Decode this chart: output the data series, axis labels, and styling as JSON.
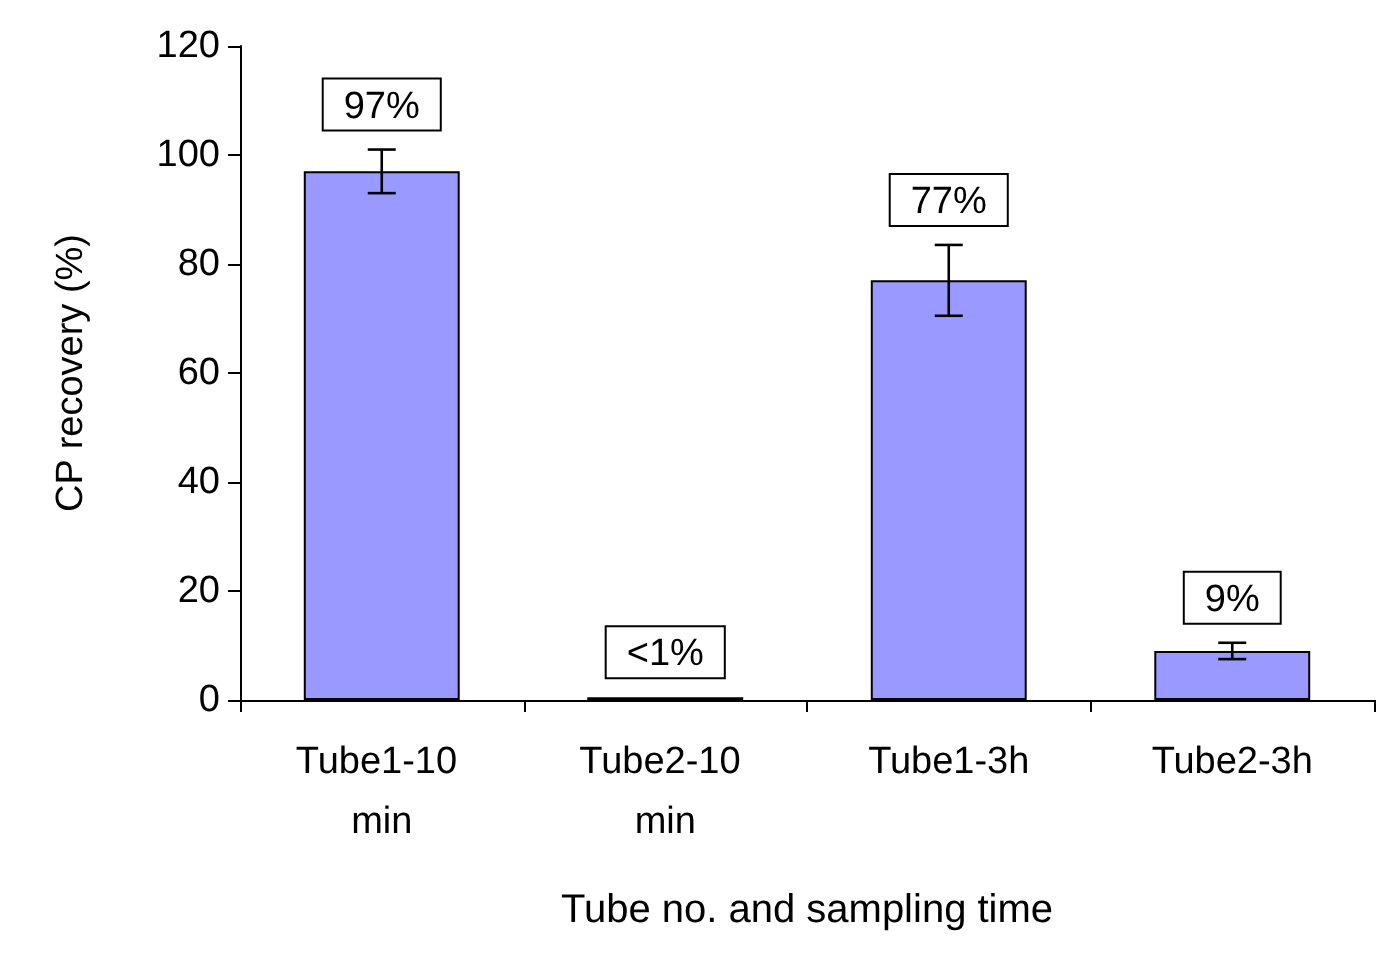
{
  "chart_data": {
    "type": "bar",
    "xlabel": "Tube no. and sampling time",
    "ylabel": "CP recovery (%)",
    "categories": [
      "Tube1-10 min",
      "Tube2-10 min",
      "Tube1-3h",
      "Tube2-3h"
    ],
    "values": [
      97,
      0.5,
      77,
      9
    ],
    "errors": [
      4,
      null,
      6.5,
      1.5
    ],
    "value_labels": [
      "97%",
      "<1%",
      "77%",
      "9%"
    ],
    "color": "#9999ff",
    "ylim": [
      0,
      120
    ],
    "yticks": [
      0,
      20,
      40,
      60,
      80,
      100,
      120
    ],
    "grid": false
  }
}
